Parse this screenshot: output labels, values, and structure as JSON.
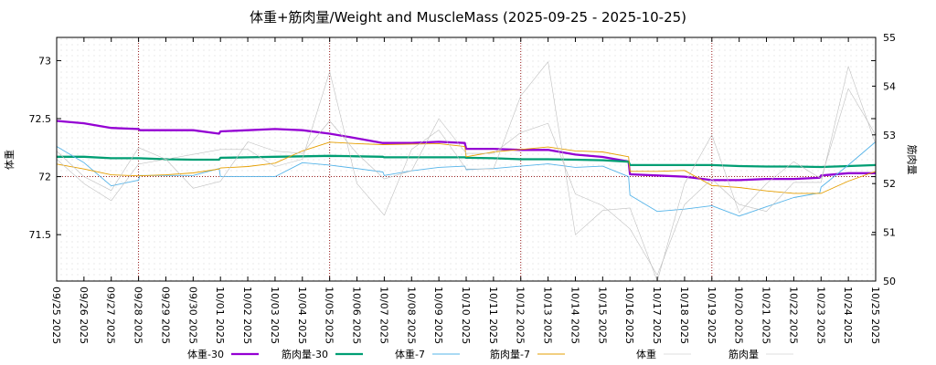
{
  "chart_data": {
    "type": "line",
    "title": "体重+筋肉量/Weight and MuscleMass (2025-09-25 - 2025-10-25)",
    "ylabel": "体重",
    "y2label": "筋肉量",
    "ylim": [
      71.1,
      73.2
    ],
    "y2lim": [
      50,
      55
    ],
    "yticks": [
      71.5,
      72,
      72.5,
      73
    ],
    "ytick_labels": [
      "71.5",
      "72",
      "72.5",
      "73"
    ],
    "y2ticks": [
      50,
      51,
      52,
      53,
      54,
      55
    ],
    "y2tick_labels": [
      "50",
      "51",
      "52",
      "53",
      "54",
      "55"
    ],
    "x_start": 0,
    "x_end": 30,
    "xtick_labels": [
      "09/25 2025",
      "09/26 2025",
      "09/27 2025",
      "09/28 2025",
      "09/29 2025",
      "09/30 2025",
      "10/01 2025",
      "10/02 2025",
      "10/03 2025",
      "10/04 2025",
      "10/05 2025",
      "10/06 2025",
      "10/07 2025",
      "10/08 2025",
      "10/09 2025",
      "10/10 2025",
      "10/11 2025",
      "10/12 2025",
      "10/13 2025",
      "10/14 2025",
      "10/15 2025",
      "10/16 2025",
      "10/17 2025",
      "10/18 2025",
      "10/19 2025",
      "10/20 2025",
      "10/21 2025",
      "10/22 2025",
      "10/23 2025",
      "10/24 2025",
      "10/25 2025"
    ],
    "week_markers": [
      3,
      10,
      17,
      24
    ],
    "hline": 72,
    "grid": true,
    "legend_position": "bottom",
    "series": [
      {
        "name": "体重-30",
        "axis": "y1",
        "color": "#9400d3",
        "style": "thick",
        "x": [
          0,
          1,
          2,
          3,
          3.05,
          4,
          5,
          5.95,
          6,
          7,
          8,
          9,
          10,
          11,
          11.95,
          12,
          13,
          14,
          14.95,
          15,
          16,
          17,
          18,
          19,
          20,
          20.95,
          21,
          22,
          23,
          24,
          25,
          26,
          27,
          27.95,
          28,
          29,
          30
        ],
        "values": [
          72.48,
          72.46,
          72.42,
          72.41,
          72.4,
          72.4,
          72.4,
          72.37,
          72.39,
          72.4,
          72.41,
          72.4,
          72.37,
          72.33,
          72.29,
          72.29,
          72.29,
          72.3,
          72.29,
          72.24,
          72.24,
          72.23,
          72.23,
          72.19,
          72.17,
          72.13,
          72.02,
          72.01,
          72.0,
          71.97,
          71.97,
          71.98,
          71.98,
          71.99,
          72.01,
          72.03,
          72.03
        ]
      },
      {
        "name": "筋肉量-30",
        "axis": "y2",
        "color": "#009e73",
        "style": "thick",
        "x": [
          0,
          1,
          2,
          3,
          4,
          5,
          5.95,
          6,
          7,
          8,
          9,
          10,
          11,
          11.95,
          12,
          13,
          14,
          14.95,
          15,
          16,
          17,
          18,
          19,
          20,
          20.95,
          21,
          22,
          23,
          24,
          25,
          26,
          27,
          28,
          29,
          30
        ],
        "values": [
          52.55,
          52.55,
          52.52,
          52.52,
          52.5,
          52.49,
          52.49,
          52.53,
          52.54,
          52.55,
          52.56,
          52.57,
          52.56,
          52.55,
          52.54,
          52.54,
          52.54,
          52.54,
          52.53,
          52.52,
          52.5,
          52.5,
          52.49,
          52.48,
          52.45,
          52.38,
          52.38,
          52.38,
          52.38,
          52.36,
          52.35,
          52.35,
          52.34,
          52.36,
          52.38
        ]
      },
      {
        "name": "体重-7",
        "axis": "y1",
        "color": "#56b4e9",
        "style": "thin",
        "x": [
          0,
          1,
          2,
          3,
          3.05,
          4,
          5,
          5.95,
          6,
          7,
          8,
          9,
          10,
          11,
          11.95,
          12,
          13,
          14,
          14.95,
          15,
          16,
          17,
          18,
          19,
          20,
          20.95,
          21,
          22,
          23,
          24,
          25,
          26,
          27,
          27.95,
          28,
          29,
          30
        ],
        "values": [
          72.26,
          72.12,
          71.92,
          71.97,
          72.01,
          72.01,
          72.01,
          72.07,
          72.0,
          72.0,
          72.0,
          72.12,
          72.1,
          72.07,
          72.04,
          72.01,
          72.05,
          72.08,
          72.09,
          72.06,
          72.07,
          72.09,
          72.11,
          72.08,
          72.09,
          72.0,
          71.84,
          71.7,
          71.72,
          71.75,
          71.66,
          71.74,
          71.82,
          71.86,
          71.91,
          72.1,
          72.3
        ]
      },
      {
        "name": "筋肉量-7",
        "axis": "y2",
        "color": "#e69f00",
        "style": "thin",
        "x": [
          0,
          1,
          2,
          3,
          4,
          5,
          5.95,
          6,
          7,
          8,
          9,
          10,
          11,
          11.95,
          12,
          13,
          14,
          14.95,
          15,
          16,
          17,
          18,
          19,
          20,
          20.95,
          21,
          22,
          23,
          24,
          25,
          26,
          27,
          28,
          29,
          30
        ],
        "values": [
          52.4,
          52.3,
          52.18,
          52.16,
          52.18,
          52.22,
          52.3,
          52.32,
          52.35,
          52.42,
          52.67,
          52.85,
          52.82,
          52.8,
          52.8,
          52.81,
          52.82,
          52.76,
          52.55,
          52.65,
          52.7,
          52.75,
          52.67,
          52.65,
          52.55,
          52.25,
          52.25,
          52.27,
          51.96,
          51.92,
          51.85,
          51.8,
          51.8,
          52.05,
          52.25
        ]
      },
      {
        "name": "体重",
        "axis": "y1",
        "color": "#c0c0c0",
        "style": "dotted-thin",
        "x": [
          0,
          1,
          2,
          3,
          4,
          5,
          6,
          7,
          8,
          9,
          10,
          11,
          12,
          13,
          14,
          15,
          16,
          17,
          18,
          19,
          20,
          21,
          22,
          23,
          24,
          25,
          26,
          27,
          28,
          29,
          30
        ],
        "values": [
          72.22,
          72.0,
          71.88,
          72.25,
          72.15,
          71.9,
          71.96,
          72.3,
          72.22,
          72.2,
          72.48,
          72.2,
          71.98,
          72.05,
          72.5,
          72.2,
          72.2,
          72.38,
          72.46,
          71.85,
          71.75,
          71.55,
          71.15,
          71.76,
          71.98,
          71.76,
          71.7,
          71.95,
          71.95,
          72.95,
          72.28
        ]
      },
      {
        "name": "筋肉量",
        "axis": "y2",
        "color": "#c0c0c0",
        "style": "dotted-thin",
        "x": [
          0,
          1,
          2,
          3,
          4,
          5,
          6,
          7,
          8,
          9,
          10,
          11,
          12,
          13,
          14,
          15,
          16,
          17,
          18,
          19,
          20,
          21,
          22,
          23,
          24,
          25,
          26,
          27,
          28,
          29,
          30
        ],
        "values": [
          52.5,
          52.0,
          51.65,
          52.4,
          52.5,
          52.6,
          52.7,
          52.7,
          52.35,
          52.5,
          54.3,
          52.0,
          51.35,
          52.7,
          53.1,
          52.3,
          52.3,
          53.8,
          54.5,
          50.95,
          51.45,
          51.5,
          50.0,
          52.0,
          53.0,
          51.4,
          52.0,
          52.45,
          52.1,
          53.95,
          53.0
        ]
      }
    ]
  }
}
